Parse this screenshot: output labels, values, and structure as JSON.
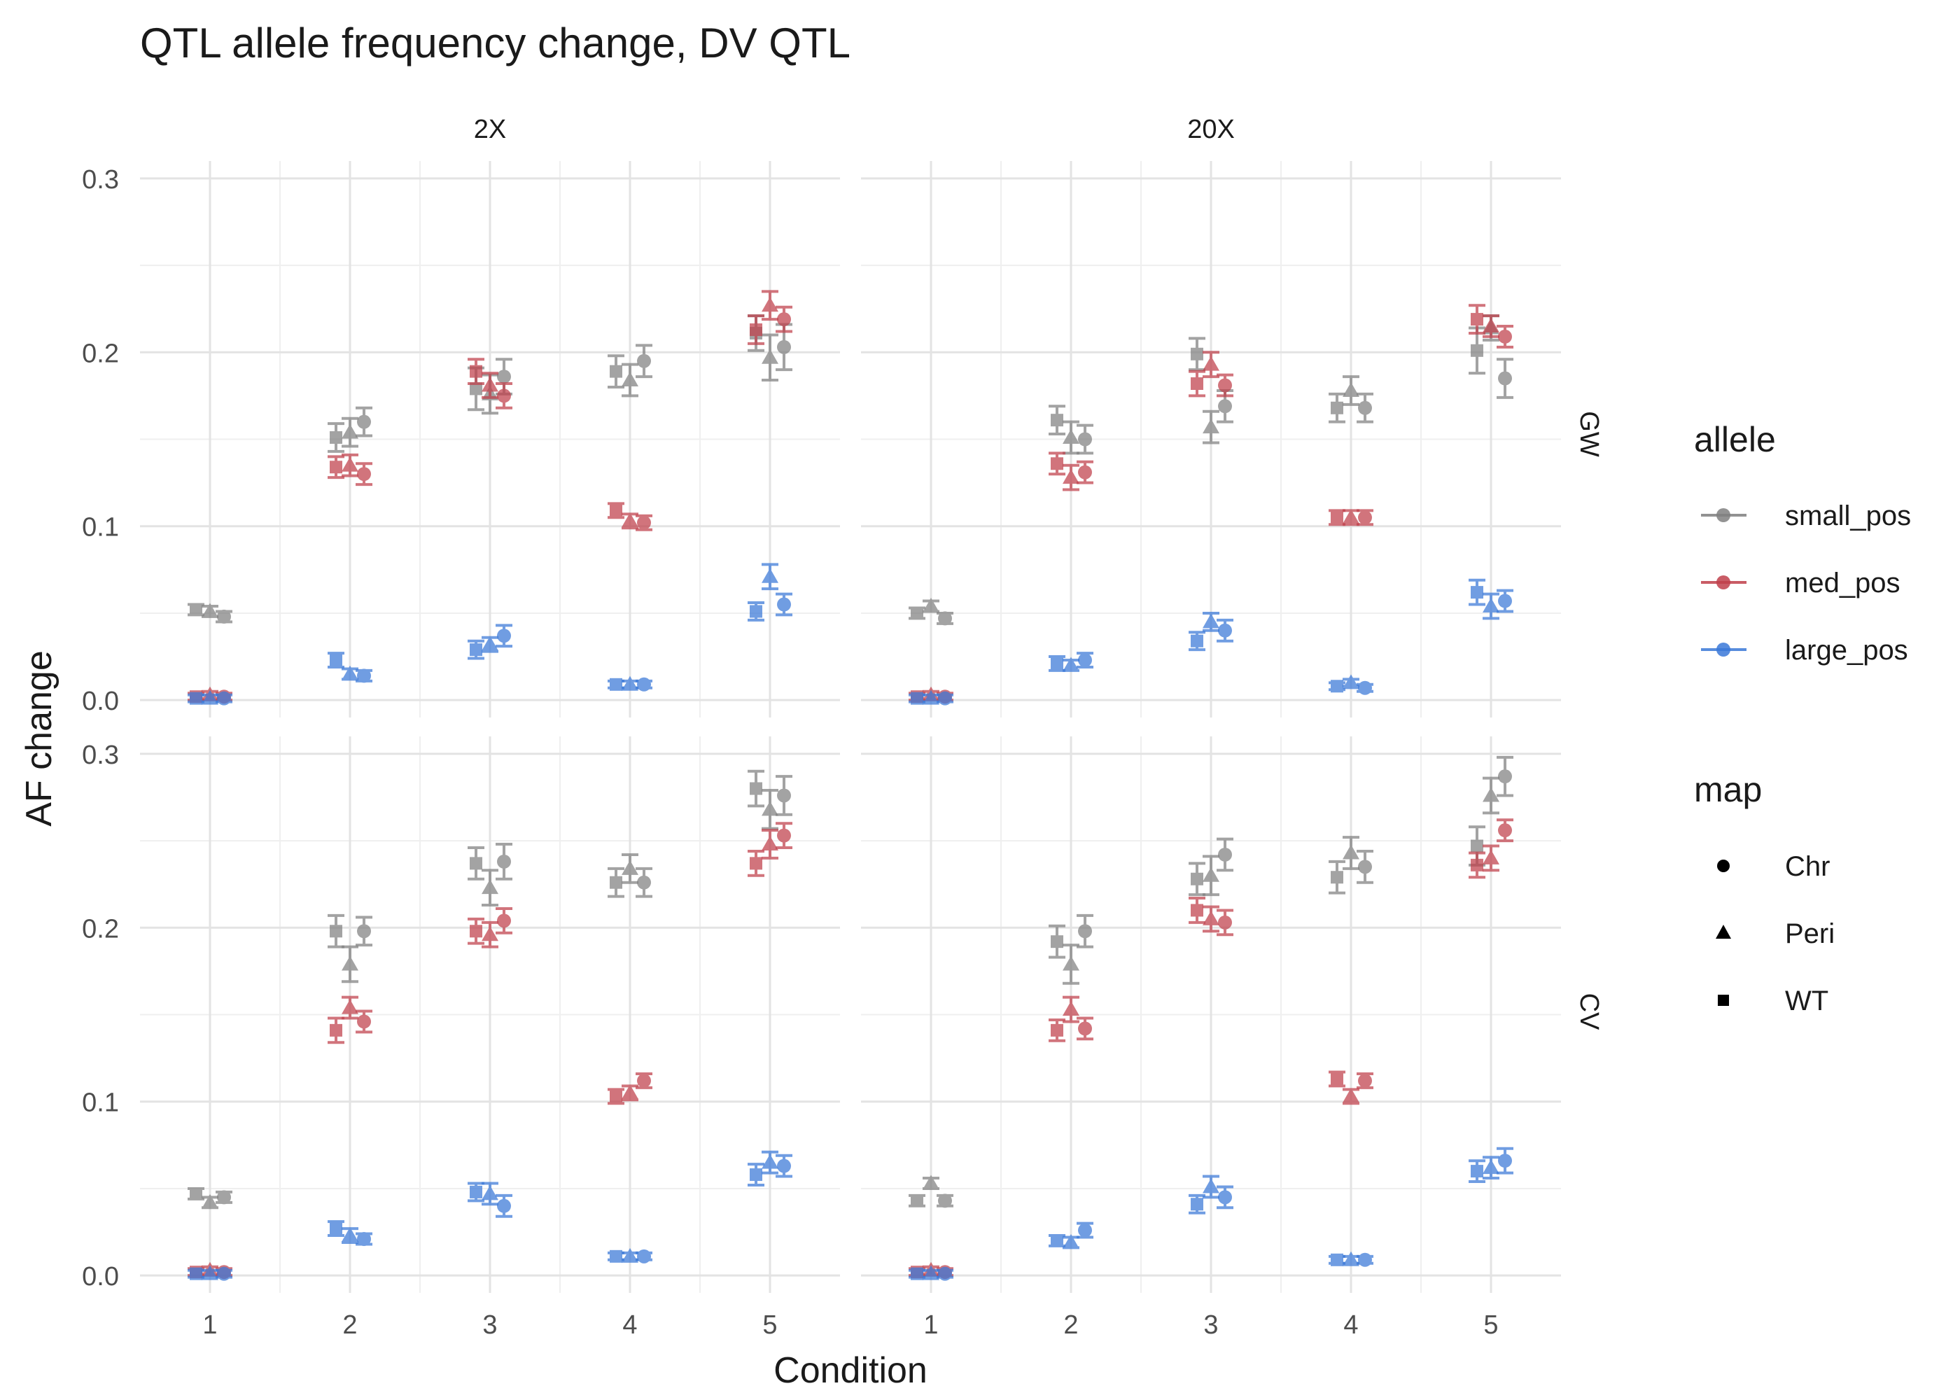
{
  "chart_data": {
    "type": "scatter",
    "title": "QTL allele frequency change, DV QTL",
    "xlabel": "Condition",
    "ylabel": "AF change",
    "x_ticks": [
      "1",
      "2",
      "3",
      "4",
      "5"
    ],
    "y_ticks": [
      "0.0",
      "0.1",
      "0.2",
      "0.3"
    ],
    "ylim": [
      -0.01,
      0.31
    ],
    "grid": true,
    "facet_cols": [
      "2X",
      "20X"
    ],
    "facet_rows": [
      "GW",
      "CV"
    ],
    "legend_position": "right",
    "legends": {
      "allele": {
        "title": "allele",
        "entries": [
          {
            "key": "small_pos",
            "label": "small_pos",
            "color": "#808080"
          },
          {
            "key": "med_pos",
            "label": "med_pos",
            "color": "#C0404B"
          },
          {
            "key": "large_pos",
            "label": "large_pos",
            "color": "#3A78D8"
          }
        ]
      },
      "map": {
        "title": "map",
        "entries": [
          {
            "key": "Chr",
            "label": "Chr",
            "shape": "circle"
          },
          {
            "key": "Peri",
            "label": "Peri",
            "shape": "triangle"
          },
          {
            "key": "WT",
            "label": "WT",
            "shape": "square"
          }
        ]
      }
    },
    "panels": [
      {
        "col": "2X",
        "row": "GW",
        "series": [
          {
            "allele": "small_pos",
            "map": "WT",
            "values": [
              0.052,
              0.151,
              0.179,
              0.189,
              0.211
            ],
            "errors": [
              0.003,
              0.008,
              0.012,
              0.009,
              0.01
            ]
          },
          {
            "allele": "small_pos",
            "map": "Peri",
            "values": [
              0.051,
              0.154,
              0.176,
              0.184,
              0.197
            ],
            "errors": [
              0.003,
              0.008,
              0.011,
              0.009,
              0.013
            ]
          },
          {
            "allele": "small_pos",
            "map": "Chr",
            "values": [
              0.048,
              0.16,
              0.186,
              0.195,
              0.203
            ],
            "errors": [
              0.003,
              0.008,
              0.01,
              0.009,
              0.013
            ]
          },
          {
            "allele": "med_pos",
            "map": "WT",
            "values": [
              0.002,
              0.134,
              0.189,
              0.109,
              0.213
            ],
            "errors": [
              0.002,
              0.006,
              0.007,
              0.004,
              0.008
            ]
          },
          {
            "allele": "med_pos",
            "map": "Peri",
            "values": [
              0.003,
              0.135,
              0.181,
              0.103,
              0.227
            ],
            "errors": [
              0.002,
              0.006,
              0.007,
              0.004,
              0.008
            ]
          },
          {
            "allele": "med_pos",
            "map": "Chr",
            "values": [
              0.002,
              0.13,
              0.175,
              0.102,
              0.219
            ],
            "errors": [
              0.002,
              0.006,
              0.007,
              0.004,
              0.007
            ]
          },
          {
            "allele": "large_pos",
            "map": "WT",
            "values": [
              0.001,
              0.023,
              0.029,
              0.009,
              0.051
            ],
            "errors": [
              0.002,
              0.004,
              0.005,
              0.002,
              0.005
            ]
          },
          {
            "allele": "large_pos",
            "map": "Peri",
            "values": [
              0.001,
              0.015,
              0.032,
              0.009,
              0.071
            ],
            "errors": [
              0.002,
              0.003,
              0.004,
              0.002,
              0.007
            ]
          },
          {
            "allele": "large_pos",
            "map": "Chr",
            "values": [
              0.001,
              0.014,
              0.037,
              0.009,
              0.055
            ],
            "errors": [
              0.002,
              0.003,
              0.006,
              0.002,
              0.006
            ]
          }
        ]
      },
      {
        "col": "20X",
        "row": "GW",
        "series": [
          {
            "allele": "small_pos",
            "map": "WT",
            "values": [
              0.05,
              0.161,
              0.199,
              0.168,
              0.201
            ],
            "errors": [
              0.003,
              0.008,
              0.009,
              0.008,
              0.013
            ]
          },
          {
            "allele": "small_pos",
            "map": "Peri",
            "values": [
              0.054,
              0.151,
              0.157,
              0.178,
              0.214
            ],
            "errors": [
              0.003,
              0.009,
              0.009,
              0.008,
              0.007
            ]
          },
          {
            "allele": "small_pos",
            "map": "Chr",
            "values": [
              0.047,
              0.15,
              0.169,
              0.168,
              0.185
            ],
            "errors": [
              0.003,
              0.008,
              0.009,
              0.008,
              0.011
            ]
          },
          {
            "allele": "med_pos",
            "map": "WT",
            "values": [
              0.002,
              0.136,
              0.182,
              0.105,
              0.219
            ],
            "errors": [
              0.002,
              0.006,
              0.007,
              0.004,
              0.008
            ]
          },
          {
            "allele": "med_pos",
            "map": "Peri",
            "values": [
              0.003,
              0.128,
              0.193,
              0.105,
              0.215
            ],
            "errors": [
              0.002,
              0.007,
              0.007,
              0.004,
              0.006
            ]
          },
          {
            "allele": "med_pos",
            "map": "Chr",
            "values": [
              0.002,
              0.131,
              0.181,
              0.105,
              0.209
            ],
            "errors": [
              0.002,
              0.006,
              0.006,
              0.004,
              0.006
            ]
          },
          {
            "allele": "large_pos",
            "map": "WT",
            "values": [
              0.001,
              0.021,
              0.034,
              0.008,
              0.062
            ],
            "errors": [
              0.002,
              0.004,
              0.005,
              0.002,
              0.007
            ]
          },
          {
            "allele": "large_pos",
            "map": "Peri",
            "values": [
              0.001,
              0.02,
              0.045,
              0.01,
              0.054
            ],
            "errors": [
              0.002,
              0.003,
              0.005,
              0.002,
              0.007
            ]
          },
          {
            "allele": "large_pos",
            "map": "Chr",
            "values": [
              0.001,
              0.023,
              0.04,
              0.007,
              0.057
            ],
            "errors": [
              0.002,
              0.004,
              0.006,
              0.002,
              0.006
            ]
          }
        ]
      },
      {
        "col": "2X",
        "row": "CV",
        "series": [
          {
            "allele": "small_pos",
            "map": "WT",
            "values": [
              0.047,
              0.198,
              0.237,
              0.226,
              0.28
            ],
            "errors": [
              0.003,
              0.009,
              0.009,
              0.008,
              0.01
            ]
          },
          {
            "allele": "small_pos",
            "map": "Peri",
            "values": [
              0.042,
              0.179,
              0.223,
              0.234,
              0.268
            ],
            "errors": [
              0.003,
              0.01,
              0.01,
              0.008,
              0.011
            ]
          },
          {
            "allele": "small_pos",
            "map": "Chr",
            "values": [
              0.045,
              0.198,
              0.238,
              0.226,
              0.276
            ],
            "errors": [
              0.003,
              0.008,
              0.01,
              0.008,
              0.011
            ]
          },
          {
            "allele": "med_pos",
            "map": "WT",
            "values": [
              0.002,
              0.141,
              0.198,
              0.103,
              0.237
            ],
            "errors": [
              0.002,
              0.007,
              0.007,
              0.004,
              0.007
            ]
          },
          {
            "allele": "med_pos",
            "map": "Peri",
            "values": [
              0.003,
              0.154,
              0.196,
              0.105,
              0.248
            ],
            "errors": [
              0.002,
              0.006,
              0.007,
              0.004,
              0.008
            ]
          },
          {
            "allele": "med_pos",
            "map": "Chr",
            "values": [
              0.002,
              0.146,
              0.204,
              0.112,
              0.253
            ],
            "errors": [
              0.002,
              0.006,
              0.007,
              0.004,
              0.007
            ]
          },
          {
            "allele": "large_pos",
            "map": "WT",
            "values": [
              0.001,
              0.027,
              0.048,
              0.011,
              0.058
            ],
            "errors": [
              0.002,
              0.004,
              0.005,
              0.002,
              0.006
            ]
          },
          {
            "allele": "large_pos",
            "map": "Peri",
            "values": [
              0.001,
              0.023,
              0.047,
              0.011,
              0.065
            ],
            "errors": [
              0.002,
              0.004,
              0.006,
              0.002,
              0.006
            ]
          },
          {
            "allele": "large_pos",
            "map": "Chr",
            "values": [
              0.001,
              0.021,
              0.04,
              0.011,
              0.063
            ],
            "errors": [
              0.002,
              0.003,
              0.006,
              0.002,
              0.006
            ]
          }
        ]
      },
      {
        "col": "20X",
        "row": "CV",
        "series": [
          {
            "allele": "small_pos",
            "map": "WT",
            "values": [
              0.043,
              0.192,
              0.228,
              0.229,
              0.247
            ],
            "errors": [
              0.003,
              0.009,
              0.009,
              0.009,
              0.011
            ]
          },
          {
            "allele": "small_pos",
            "map": "Peri",
            "values": [
              0.053,
              0.179,
              0.23,
              0.243,
              0.276
            ],
            "errors": [
              0.003,
              0.011,
              0.011,
              0.009,
              0.01
            ]
          },
          {
            "allele": "small_pos",
            "map": "Chr",
            "values": [
              0.043,
              0.198,
              0.242,
              0.235,
              0.287
            ],
            "errors": [
              0.003,
              0.009,
              0.009,
              0.009,
              0.011
            ]
          },
          {
            "allele": "med_pos",
            "map": "WT",
            "values": [
              0.002,
              0.141,
              0.21,
              0.113,
              0.236
            ],
            "errors": [
              0.002,
              0.006,
              0.007,
              0.004,
              0.007
            ]
          },
          {
            "allele": "med_pos",
            "map": "Peri",
            "values": [
              0.003,
              0.153,
              0.205,
              0.103,
              0.24
            ],
            "errors": [
              0.002,
              0.007,
              0.007,
              0.004,
              0.007
            ]
          },
          {
            "allele": "med_pos",
            "map": "Chr",
            "values": [
              0.002,
              0.142,
              0.203,
              0.112,
              0.256
            ],
            "errors": [
              0.002,
              0.006,
              0.007,
              0.004,
              0.006
            ]
          },
          {
            "allele": "large_pos",
            "map": "WT",
            "values": [
              0.001,
              0.02,
              0.041,
              0.009,
              0.06
            ],
            "errors": [
              0.002,
              0.003,
              0.005,
              0.002,
              0.006
            ]
          },
          {
            "allele": "large_pos",
            "map": "Peri",
            "values": [
              0.001,
              0.019,
              0.051,
              0.009,
              0.062
            ],
            "errors": [
              0.002,
              0.003,
              0.006,
              0.002,
              0.006
            ]
          },
          {
            "allele": "large_pos",
            "map": "Chr",
            "values": [
              0.001,
              0.026,
              0.045,
              0.009,
              0.066
            ],
            "errors": [
              0.002,
              0.004,
              0.006,
              0.002,
              0.007
            ]
          }
        ]
      }
    ]
  }
}
